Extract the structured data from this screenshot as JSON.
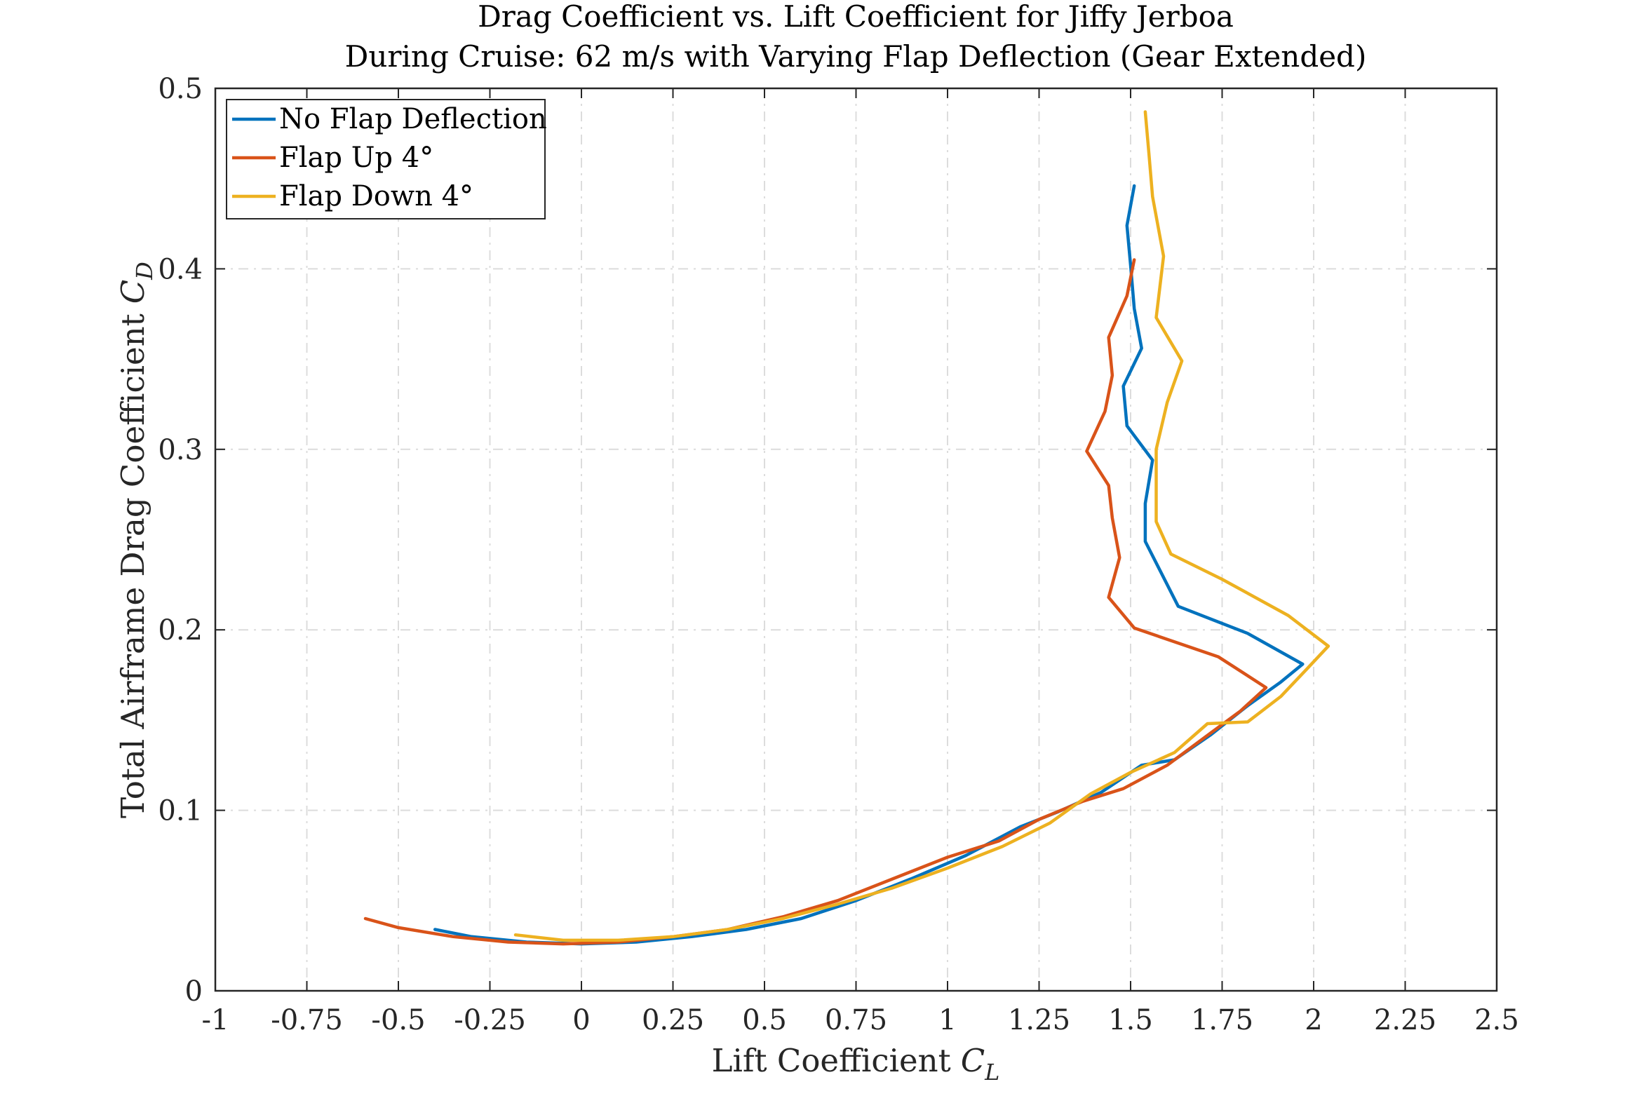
{
  "chart_data": {
    "type": "line",
    "title": "Drag Coefficient vs. Lift Coefficient for Jiffy Jerboa",
    "subtitle": "During Cruise: 62 m/s with Varying Flap Deflection (Gear Extended)",
    "xlabel": "Lift Coefficient",
    "xlabel_symbol": "C",
    "xlabel_subscript": "L",
    "ylabel": "Total Airframe Drag Coefficient",
    "ylabel_symbol": "C",
    "ylabel_subscript": "D",
    "xlim": [
      -1,
      2.5
    ],
    "ylim": [
      0,
      0.5
    ],
    "xticks": [
      "-1",
      "-0.75",
      "-0.5",
      "-0.25",
      "0",
      "0.25",
      "0.5",
      "0.75",
      "1",
      "1.25",
      "1.5",
      "1.75",
      "2",
      "2.25",
      "2.5"
    ],
    "yticks": [
      "0",
      "0.1",
      "0.2",
      "0.3",
      "0.4",
      "0.5"
    ],
    "grid": true,
    "legend_position": "top-left",
    "series": [
      {
        "name": "No Flap Deflection",
        "color": "#0072BD",
        "x": [
          -0.4,
          -0.3,
          -0.15,
          0.0,
          0.15,
          0.3,
          0.45,
          0.6,
          0.75,
          0.9,
          1.05,
          1.2,
          1.3,
          1.42,
          1.53,
          1.62,
          1.72,
          1.82,
          1.91,
          1.97,
          1.82,
          1.63,
          1.54,
          1.54,
          1.56,
          1.49,
          1.48,
          1.53,
          1.51,
          1.5,
          1.49,
          1.51
        ],
        "y": [
          0.034,
          0.03,
          0.027,
          0.026,
          0.027,
          0.03,
          0.034,
          0.04,
          0.05,
          0.062,
          0.075,
          0.091,
          0.099,
          0.11,
          0.125,
          0.128,
          0.142,
          0.158,
          0.171,
          0.181,
          0.198,
          0.213,
          0.249,
          0.27,
          0.294,
          0.313,
          0.335,
          0.356,
          0.378,
          0.402,
          0.424,
          0.446
        ]
      },
      {
        "name": "Flap Up 4°",
        "color": "#D95319",
        "x": [
          -0.59,
          -0.5,
          -0.35,
          -0.2,
          -0.05,
          0.1,
          0.25,
          0.4,
          0.55,
          0.7,
          0.85,
          1.0,
          1.14,
          1.25,
          1.37,
          1.48,
          1.6,
          1.7,
          1.8,
          1.87,
          1.74,
          1.51,
          1.44,
          1.47,
          1.45,
          1.44,
          1.38,
          1.43,
          1.45,
          1.44,
          1.49,
          1.51
        ],
        "y": [
          0.04,
          0.035,
          0.03,
          0.027,
          0.026,
          0.027,
          0.03,
          0.034,
          0.041,
          0.05,
          0.062,
          0.074,
          0.083,
          0.095,
          0.105,
          0.112,
          0.125,
          0.14,
          0.155,
          0.168,
          0.185,
          0.201,
          0.218,
          0.24,
          0.262,
          0.28,
          0.299,
          0.321,
          0.341,
          0.362,
          0.385,
          0.405
        ]
      },
      {
        "name": "Flap Down 4°",
        "color": "#EDB120",
        "x": [
          -0.18,
          -0.05,
          0.1,
          0.25,
          0.4,
          0.55,
          0.7,
          0.85,
          1.0,
          1.15,
          1.28,
          1.39,
          1.5,
          1.62,
          1.71,
          1.82,
          1.91,
          1.98,
          2.04,
          1.93,
          1.75,
          1.61,
          1.57,
          1.57,
          1.6,
          1.64,
          1.57,
          1.59,
          1.56,
          1.55,
          1.54
        ],
        "y": [
          0.031,
          0.028,
          0.028,
          0.03,
          0.034,
          0.04,
          0.048,
          0.057,
          0.068,
          0.08,
          0.093,
          0.109,
          0.121,
          0.132,
          0.148,
          0.149,
          0.163,
          0.178,
          0.191,
          0.208,
          0.228,
          0.242,
          0.26,
          0.3,
          0.326,
          0.349,
          0.373,
          0.407,
          0.44,
          0.464,
          0.487
        ]
      }
    ]
  }
}
